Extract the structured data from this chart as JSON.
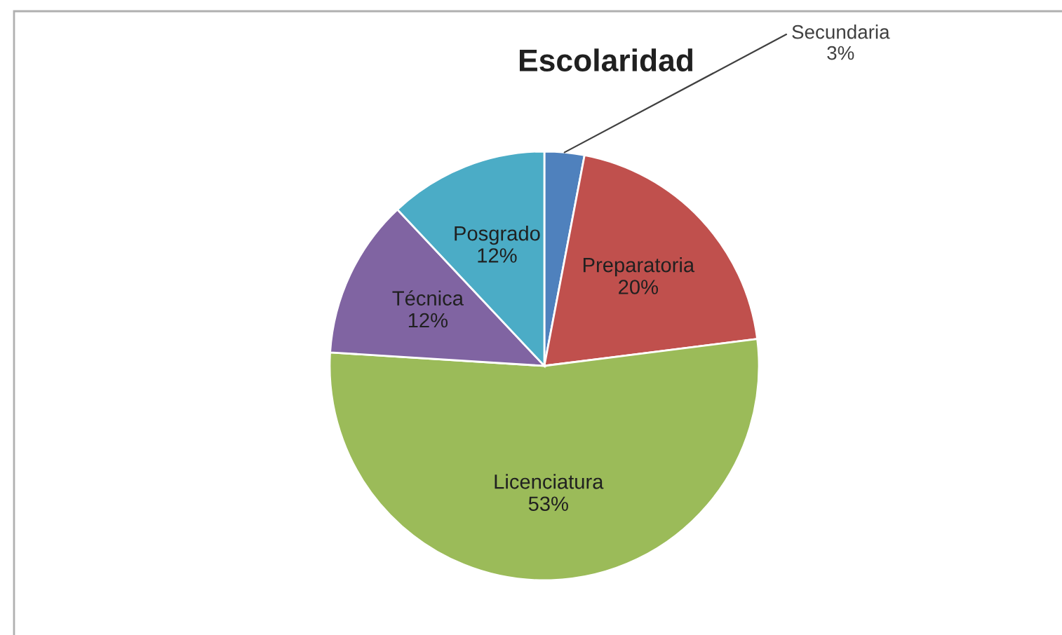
{
  "chart_data": {
    "type": "pie",
    "title": "Escolaridad",
    "categories": [
      "Secundaria",
      "Preparatoria",
      "Licenciatura",
      "Técnica",
      "Posgrado"
    ],
    "values": [
      3,
      20,
      53,
      12,
      12
    ],
    "value_labels": [
      "3%",
      "20%",
      "53%",
      "12%",
      "12%"
    ],
    "colors": [
      "#4f81bd",
      "#c0504d",
      "#9bbb59",
      "#8064a2",
      "#4bacc6"
    ],
    "legend": false
  }
}
